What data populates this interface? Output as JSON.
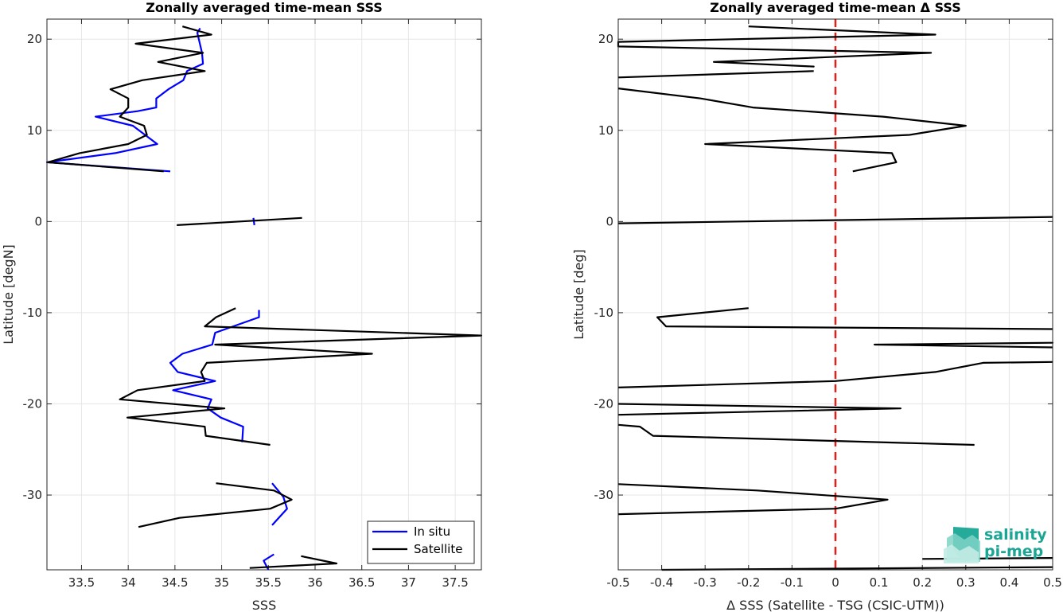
{
  "logo": {
    "line1": "salinity",
    "line2": "pi-mep",
    "color": "#1aa594"
  },
  "chart_data": [
    {
      "type": "line",
      "title": "Zonally averaged time-mean SSS",
      "xlabel": "SSS",
      "ylabel": "Latitude [degN]",
      "xlim": [
        33.13,
        37.78
      ],
      "ylim": [
        -38.2,
        22.2
      ],
      "xticks": [
        33.5,
        34,
        34.5,
        35,
        35.5,
        36,
        36.5,
        37,
        37.5
      ],
      "yticks": [
        20,
        10,
        0,
        -10,
        -20,
        -30
      ],
      "grid": true,
      "legend": {
        "position": "bottom-right",
        "entries": [
          "In situ",
          "Satellite"
        ]
      },
      "series": [
        {
          "name": "In situ",
          "color": "#0000ff",
          "segments": [
            [
              [
                34.77,
                21.2
              ],
              [
                34.74,
                20.7
              ],
              [
                34.79,
                18.5
              ],
              [
                34.8,
                17.3
              ],
              [
                34.63,
                16.5
              ],
              [
                34.59,
                15.5
              ],
              [
                34.43,
                14.5
              ],
              [
                34.3,
                13.5
              ],
              [
                34.3,
                12.5
              ],
              [
                34.1,
                12.1
              ],
              [
                33.65,
                11.5
              ],
              [
                34.05,
                10.5
              ],
              [
                34.31,
                8.5
              ],
              [
                33.86,
                7.5
              ],
              [
                33.13,
                6.5
              ],
              [
                34.45,
                5.5
              ]
            ],
            [
              [
                35.34,
                0.4
              ],
              [
                35.35,
                -0.4
              ]
            ],
            [
              [
                35.4,
                -9.7
              ],
              [
                35.4,
                -10.5
              ],
              [
                34.93,
                -12.2
              ],
              [
                34.9,
                -13.5
              ],
              [
                34.58,
                -14.5
              ],
              [
                34.45,
                -15.5
              ],
              [
                34.53,
                -16.5
              ],
              [
                34.93,
                -17.5
              ],
              [
                34.48,
                -18.5
              ],
              [
                34.89,
                -19.5
              ],
              [
                34.85,
                -20.5
              ],
              [
                34.99,
                -21.5
              ],
              [
                35.23,
                -22.5
              ],
              [
                35.22,
                -24.2
              ]
            ],
            [
              [
                35.54,
                -28.7
              ],
              [
                35.66,
                -30.2
              ],
              [
                35.7,
                -31.5
              ],
              [
                35.54,
                -33.3
              ]
            ],
            [
              [
                35.56,
                -36.5
              ],
              [
                35.45,
                -37.2
              ],
              [
                35.5,
                -38.2
              ]
            ]
          ]
        },
        {
          "name": "Satellite",
          "color": "#000000",
          "segments": [
            [
              [
                34.58,
                21.4
              ],
              [
                34.89,
                20.5
              ],
              [
                34.08,
                19.5
              ],
              [
                34.8,
                18.5
              ],
              [
                34.32,
                17.5
              ],
              [
                34.82,
                16.5
              ],
              [
                34.15,
                15.5
              ],
              [
                33.81,
                14.5
              ],
              [
                34.0,
                13.5
              ],
              [
                34.0,
                12.5
              ],
              [
                33.91,
                11.5
              ],
              [
                34.17,
                10.5
              ],
              [
                34.2,
                9.5
              ],
              [
                34.0,
                8.5
              ],
              [
                33.48,
                7.5
              ],
              [
                33.14,
                6.5
              ],
              [
                34.38,
                5.5
              ]
            ],
            [
              [
                34.52,
                -0.4
              ],
              [
                35.86,
                0.4
              ]
            ],
            [
              [
                35.15,
                -9.5
              ],
              [
                34.94,
                -10.5
              ],
              [
                34.82,
                -11.5
              ],
              [
                37.78,
                -12.5
              ],
              [
                34.93,
                -13.5
              ],
              [
                36.61,
                -14.5
              ],
              [
                34.84,
                -15.5
              ],
              [
                34.78,
                -16.5
              ],
              [
                34.82,
                -17.5
              ],
              [
                34.1,
                -18.5
              ],
              [
                33.91,
                -19.5
              ],
              [
                35.03,
                -20.5
              ],
              [
                33.99,
                -21.5
              ],
              [
                34.82,
                -22.5
              ],
              [
                34.83,
                -23.5
              ],
              [
                35.52,
                -24.5
              ]
            ],
            [
              [
                34.94,
                -28.7
              ],
              [
                35.56,
                -29.5
              ],
              [
                35.75,
                -30.5
              ],
              [
                35.52,
                -31.5
              ],
              [
                34.55,
                -32.5
              ],
              [
                34.11,
                -33.5
              ]
            ],
            [
              [
                35.85,
                -36.7
              ],
              [
                36.23,
                -37.5
              ],
              [
                35.3,
                -38.0
              ]
            ]
          ]
        }
      ]
    },
    {
      "type": "line",
      "title": "Zonally averaged time-mean Δ SSS",
      "xlabel": "Δ SSS (Satellite - TSG (CSIC-UTM))",
      "ylabel": "Latitude [deg]",
      "xlim": [
        -0.5,
        0.5
      ],
      "ylim": [
        -38.2,
        22.2
      ],
      "xticks": [
        -0.5,
        -0.4,
        -0.3,
        -0.2,
        -0.1,
        0,
        0.1,
        0.2,
        0.3,
        0.4,
        0.5
      ],
      "yticks": [
        20,
        10,
        0,
        -10,
        -20,
        -30
      ],
      "grid": true,
      "zero_line": {
        "x": 0,
        "color": "#e0201b",
        "style": "dashed"
      },
      "series": [
        {
          "name": "",
          "color": "#000000",
          "segments": [
            [
              [
                -0.2,
                21.4
              ],
              [
                0.23,
                20.5
              ],
              [
                -0.5,
                19.7
              ],
              [
                -0.5,
                19.2
              ],
              [
                0.22,
                18.5
              ],
              [
                -0.28,
                17.5
              ],
              [
                -0.05,
                17.0
              ],
              [
                -0.28,
                17.5
              ]
            ],
            [
              [
                -0.05,
                16.5
              ],
              [
                -0.5,
                15.8
              ]
            ],
            [
              [
                -0.5,
                14.6
              ],
              [
                -0.31,
                13.5
              ],
              [
                -0.19,
                12.5
              ],
              [
                0.11,
                11.5
              ],
              [
                0.3,
                10.5
              ],
              [
                0.17,
                9.5
              ],
              [
                -0.3,
                8.5
              ],
              [
                0.13,
                7.5
              ],
              [
                0.14,
                6.5
              ],
              [
                0.04,
                5.5
              ]
            ],
            [
              [
                -0.5,
                -0.2
              ],
              [
                0.5,
                0.5
              ]
            ],
            [
              [
                -0.2,
                -9.5
              ],
              [
                -0.41,
                -10.5
              ],
              [
                -0.39,
                -11.5
              ],
              [
                0.5,
                -11.8
              ]
            ],
            [
              [
                0.09,
                -13.5
              ],
              [
                0.5,
                -13.3
              ],
              [
                0.09,
                -13.5
              ],
              [
                0.5,
                -13.8
              ]
            ],
            [
              [
                0.5,
                -15.4
              ],
              [
                0.34,
                -15.5
              ],
              [
                0.23,
                -16.5
              ],
              [
                0.0,
                -17.5
              ],
              [
                -0.5,
                -18.2
              ]
            ],
            [
              [
                -0.5,
                -20.0
              ],
              [
                0.15,
                -20.5
              ],
              [
                -0.5,
                -21.2
              ]
            ],
            [
              [
                -0.5,
                -22.3
              ],
              [
                -0.45,
                -22.5
              ],
              [
                -0.42,
                -23.5
              ],
              [
                0.32,
                -24.5
              ]
            ],
            [
              [
                -0.5,
                -28.8
              ],
              [
                -0.18,
                -29.5
              ],
              [
                0.12,
                -30.5
              ],
              [
                0.0,
                -31.5
              ],
              [
                -0.5,
                -32.1
              ]
            ],
            [
              [
                0.5,
                -36.9
              ],
              [
                0.2,
                -37.0
              ]
            ],
            [
              [
                -0.4,
                -38.2
              ],
              [
                0.5,
                -37.9
              ]
            ]
          ]
        }
      ]
    }
  ]
}
